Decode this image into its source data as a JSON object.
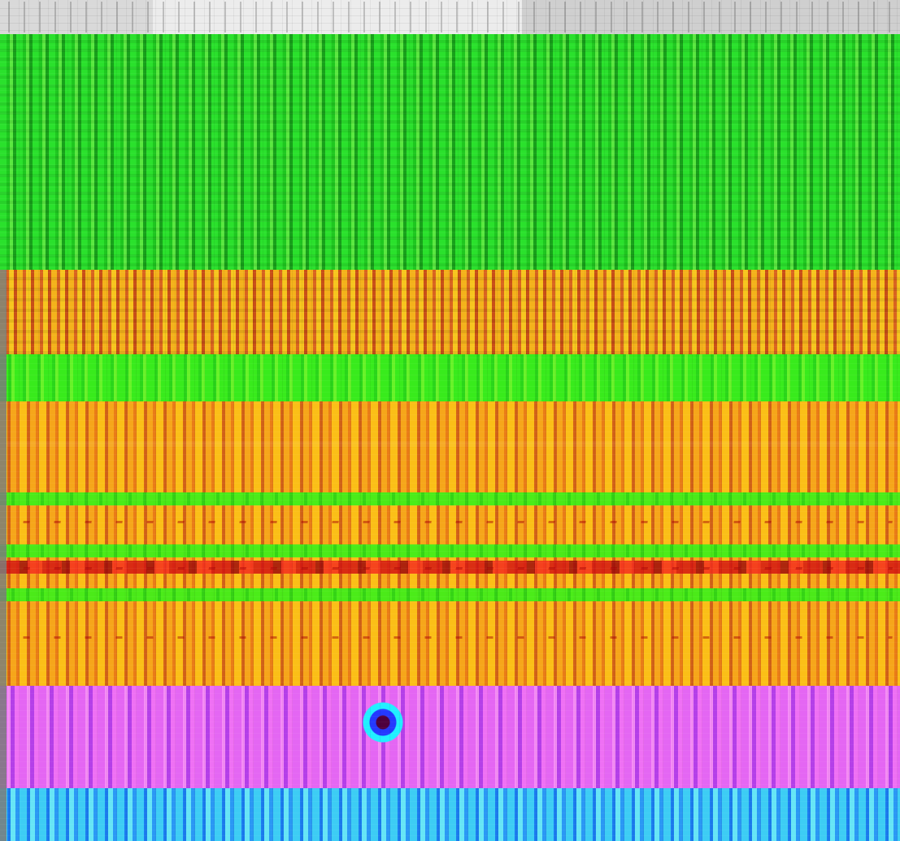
{
  "colors": {
    "green": "#2ae12c",
    "orange": "#f4b21b",
    "pink": "#e466f3",
    "cyan": "#3dcdf4",
    "ink": "#cd1600"
  }
}
